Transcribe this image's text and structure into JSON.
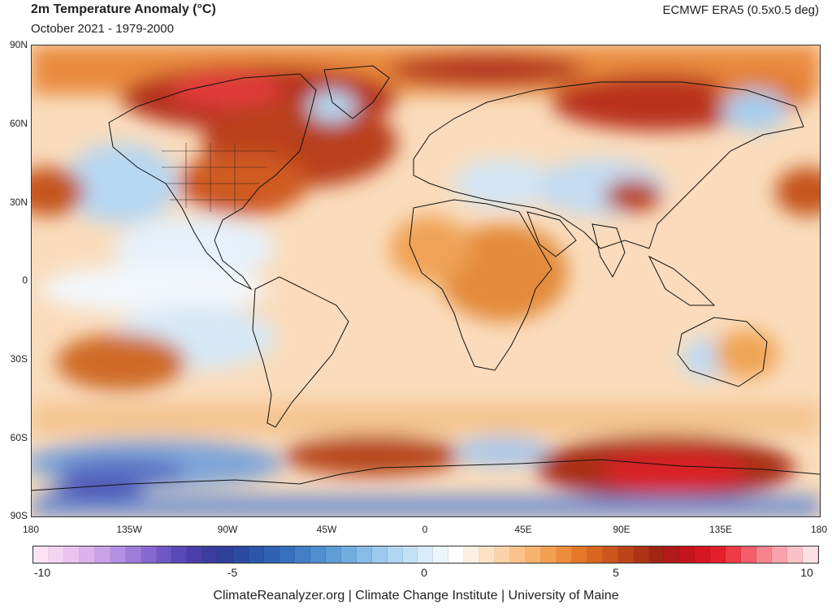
{
  "header": {
    "title": "2m Temperature Anomaly (°C)",
    "subtitle": "October 2021 - 1979-2000",
    "source": "ECMWF ERA5 (0.5x0.5 deg)"
  },
  "map": {
    "lat_labels": [
      "90N",
      "60N",
      "30N",
      "0",
      "30S",
      "60S",
      "90S"
    ],
    "lon_labels": [
      "180",
      "135W",
      "90W",
      "45W",
      "0",
      "45E",
      "90E",
      "135E",
      "180"
    ]
  },
  "colorbar": {
    "ticks": [
      "-10",
      "-5",
      "0",
      "5",
      "10"
    ],
    "colors": [
      "#fde3f3",
      "#f5d3f2",
      "#eac3f0",
      "#dcb2ee",
      "#c9a2ea",
      "#b48fe3",
      "#9d7cda",
      "#8669d0",
      "#6f58c5",
      "#5a49b8",
      "#4a3faa",
      "#3a3d9e",
      "#30419a",
      "#2b4aa0",
      "#2c56a8",
      "#3063b2",
      "#3771bd",
      "#427fc7",
      "#4f8ed0",
      "#5f9dd8",
      "#72ade0",
      "#86bce7",
      "#9bcaed",
      "#b0d7f2",
      "#c4e2f6",
      "#d8ecf9",
      "#ebf5fc",
      "#ffffff",
      "#fdf0e2",
      "#fde2c6",
      "#fcd3a8",
      "#fbc38b",
      "#f9b16e",
      "#f59f52",
      "#ee8b3a",
      "#e47828",
      "#d86620",
      "#cb551c",
      "#bc4419",
      "#ad3416",
      "#a02613",
      "#b01a18",
      "#c4151c",
      "#d61722",
      "#e41f2c",
      "#ef3b46",
      "#f45f6b",
      "#f7838d",
      "#f9a3ac",
      "#fbc1c7",
      "#fde0e3"
    ]
  },
  "footer": "ClimateReanalyzer.org | Climate Change Institute | University of Maine"
}
